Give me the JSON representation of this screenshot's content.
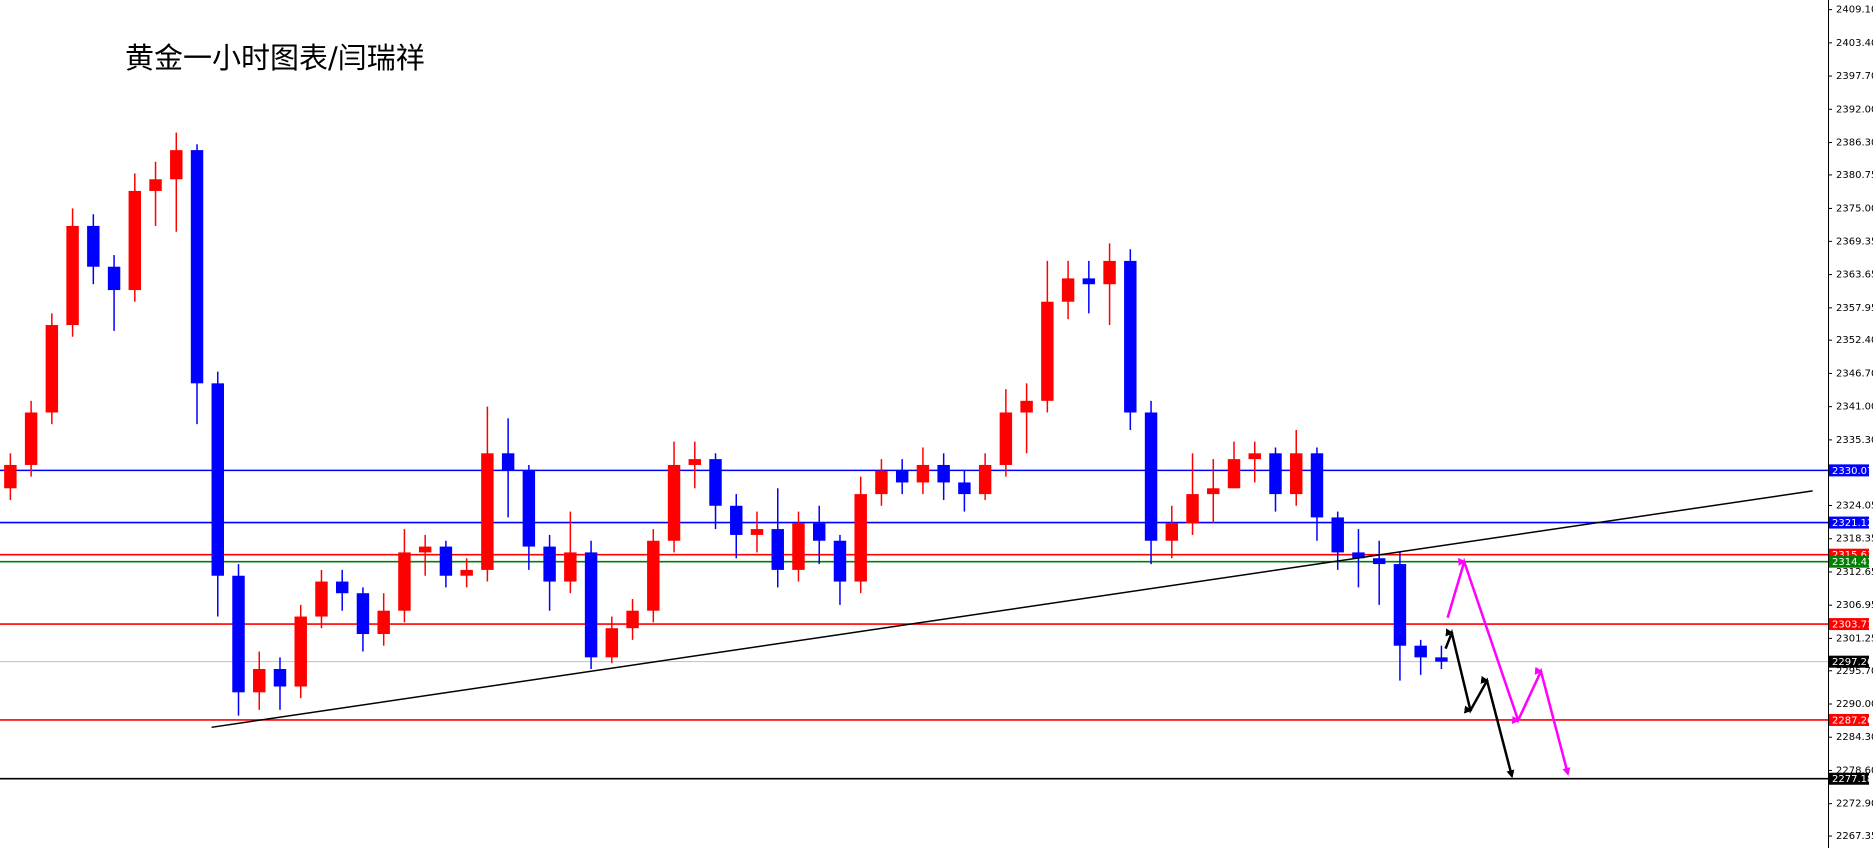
{
  "chart_data": {
    "type": "candlestick",
    "title": "黄金一小时图表/闫瑞祥",
    "open": [
      2327,
      2331,
      2340,
      2355,
      2372,
      2365,
      2361,
      2378,
      2380,
      2385,
      2345,
      2312,
      2292,
      2296,
      2293,
      2305,
      2311,
      2309,
      2302,
      2306,
      2316,
      2317,
      2312,
      2313,
      2333,
      2330,
      2317,
      2311,
      2316,
      2298,
      2303,
      2306,
      2318,
      2331,
      2332,
      2324,
      2319,
      2320,
      2313,
      2321,
      2318,
      2311,
      2326,
      2330,
      2328,
      2331,
      2328,
      2326,
      2331,
      2340,
      2342,
      2359,
      2363,
      2362,
      2366,
      2340,
      2318,
      2321,
      2326,
      2327,
      2332,
      2333,
      2326,
      2333,
      2322,
      2316,
      2315,
      2314,
      2300,
      2298
    ],
    "high": [
      2333,
      2342,
      2357,
      2375,
      2374,
      2367,
      2381,
      2383,
      2388,
      2386,
      2347,
      2314,
      2299,
      2298,
      2307,
      2313,
      2313,
      2310,
      2309,
      2320,
      2319,
      2318,
      2315,
      2341,
      2339,
      2331,
      2319,
      2323,
      2318,
      2305,
      2308,
      2320,
      2335,
      2335,
      2333,
      2326,
      2323,
      2327,
      2323,
      2324,
      2319,
      2329,
      2332,
      2332,
      2334,
      2333,
      2330,
      2333,
      2344,
      2345,
      2366,
      2366,
      2366,
      2369,
      2368,
      2342,
      2324,
      2333,
      2332,
      2335,
      2335,
      2334,
      2337,
      2334,
      2323,
      2320,
      2318,
      2316,
      2301,
      2300
    ],
    "low": [
      2325,
      2329,
      2338,
      2353,
      2362,
      2354,
      2359,
      2372,
      2371,
      2338,
      2305,
      2288,
      2289,
      2289,
      2291,
      2303,
      2306,
      2299,
      2300,
      2304,
      2312,
      2310,
      2310,
      2311,
      2322,
      2313,
      2306,
      2309,
      2296,
      2297,
      2301,
      2304,
      2316,
      2327,
      2320,
      2315,
      2316,
      2310,
      2311,
      2314,
      2307,
      2309,
      2324,
      2326,
      2326,
      2325,
      2323,
      2325,
      2329,
      2333,
      2340,
      2356,
      2357,
      2355,
      2337,
      2314,
      2315,
      2319,
      2321,
      2327,
      2328,
      2323,
      2324,
      2318,
      2313,
      2310,
      2307,
      2294,
      2295,
      2296
    ],
    "close": [
      2331,
      2340,
      2355,
      2372,
      2365,
      2361,
      2378,
      2380,
      2385,
      2345,
      2312,
      2292,
      2296,
      2293,
      2305,
      2311,
      2309,
      2302,
      2306,
      2316,
      2317,
      2312,
      2313,
      2333,
      2330,
      2317,
      2311,
      2316,
      2298,
      2303,
      2306,
      2318,
      2331,
      2332,
      2324,
      2319,
      2320,
      2313,
      2321,
      2318,
      2311,
      2326,
      2330,
      2328,
      2331,
      2328,
      2326,
      2331,
      2340,
      2342,
      2359,
      2363,
      2362,
      2366,
      2340,
      2318,
      2321,
      2326,
      2327,
      2332,
      2333,
      2326,
      2333,
      2322,
      2316,
      2315,
      2314,
      2300,
      2298,
      2297.26
    ],
    "up_color": "#ff0000",
    "down_color": "#0000ff",
    "xlim": [
      -0.5,
      87.64
    ],
    "ylim": [
      2265.3,
      2410.75
    ],
    "yticks": [
      {
        "value": 2409.1,
        "label": "2409.10"
      },
      {
        "value": 2403.4,
        "label": "2403.40"
      },
      {
        "value": 2397.7,
        "label": "2397.70"
      },
      {
        "value": 2392,
        "label": "2392.00"
      },
      {
        "value": 2386.3,
        "label": "2386.30"
      },
      2380.75,
      {
        "value": 2375,
        "label": "2375.00"
      },
      2369.35,
      2363.65,
      2357.95,
      {
        "value": 2352.4,
        "label": "2352.40"
      },
      {
        "value": 2346.7,
        "label": "2346.70"
      },
      {
        "value": 2341,
        "label": "2341.00"
      },
      {
        "value": 2335.3,
        "label": "2335.30"
      },
      2324.05,
      2318.35,
      2312.65,
      2306.95,
      2301.25,
      {
        "value": 2295.7,
        "label": "2295.70"
      },
      {
        "value": 2290,
        "label": "2290.00"
      },
      {
        "value": 2284.3,
        "label": "2284.30"
      },
      {
        "value": 2278.6,
        "label": "2278.60"
      },
      {
        "value": 2272.9,
        "label": "2272.90"
      },
      2267.35
    ],
    "levels": [
      {
        "value": 2330.07,
        "color": "#0000ff"
      },
      {
        "value": 2321.12,
        "color": "#0000ff"
      },
      {
        "value": 2315.61,
        "color": "#ff0000"
      },
      {
        "value": 2314.41,
        "color": "#008000"
      },
      {
        "value": 2303.71,
        "color": "#ff0000"
      },
      {
        "value": 2297.26,
        "color": "#c0c0c0"
      },
      {
        "value": 2287.26,
        "color": "#ff0000"
      },
      {
        "value": 2277.18,
        "color": "#000000"
      }
    ],
    "trendline": {
      "x": [
        9.7,
        86.9
      ],
      "y": [
        2286.0,
        2326.55
      ],
      "color": "#000000"
    },
    "projections": [
      {
        "color": "#000000",
        "x": [
          69.2,
          69.5,
          70.4,
          71.2,
          72.4
        ],
        "y": [
          2299.5,
          2302.2,
          2288.9,
          2294.0,
          2277.6
        ]
      },
      {
        "color": "#ff00ff",
        "x": [
          69.3,
          70.1,
          72.7,
          73.8,
          75.1
        ],
        "y": [
          2304.8,
          2314.4,
          2287.2,
          2295.6,
          2278.0
        ]
      }
    ]
  }
}
